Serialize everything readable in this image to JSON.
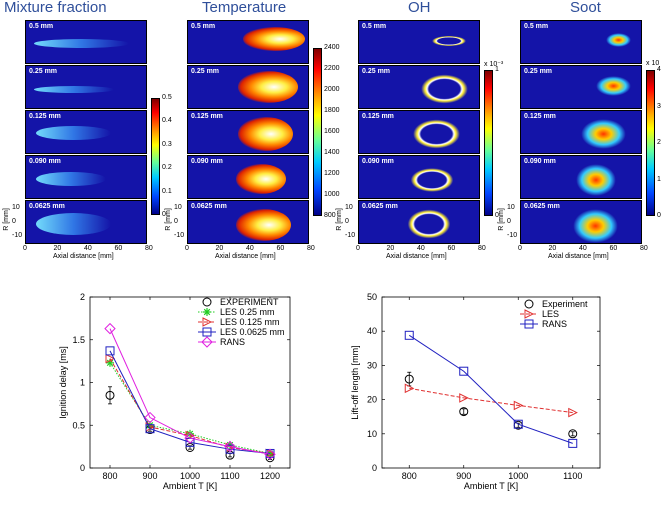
{
  "top_figure": {
    "columns": [
      {
        "title": "Mixture fraction",
        "panels": [
          "",
          "",
          "",
          "",
          ""
        ],
        "colorbar_ticks": [
          "0.5",
          "0.4",
          "0.3",
          "0.2",
          "0.1",
          "0"
        ],
        "colorbar_exp": ""
      },
      {
        "title": "Temperature",
        "panels": [
          "0.5 mm",
          "0.25 mm",
          "0.125 mm",
          "0.090 mm",
          "0.0625 mm"
        ],
        "colorbar_ticks": [
          "2400",
          "2200",
          "2000",
          "1800",
          "1600",
          "1400",
          "1200",
          "1000",
          "800"
        ],
        "colorbar_exp": ""
      },
      {
        "title": "OH",
        "panels": [
          "0.5 mm",
          "0.25 mm",
          "0.125 mm",
          "0.090 mm",
          "0.0625 mm"
        ],
        "colorbar_ticks": [
          "1",
          "0"
        ],
        "colorbar_exp": "x 10⁻³"
      },
      {
        "title": "Soot",
        "panels": [
          "0.5 mm",
          "0.25 mm",
          "0.125 mm",
          "0.090 mm",
          "0.0625 mm"
        ],
        "colorbar_ticks": [
          "4",
          "3",
          "2",
          "1",
          "0"
        ],
        "colorbar_exp": "x 10"
      }
    ],
    "mixture_panels": [
      "0.5 mm",
      "0.25 mm",
      "0.125 mm",
      "0.090 mm",
      "0.0625 mm"
    ],
    "y_ticks": [
      "10",
      "0",
      "-10"
    ],
    "x_ticks": [
      "0",
      "20",
      "40",
      "60",
      "80"
    ],
    "ylabel": "R [mm]",
    "xlabel": "Axial distance [mm]"
  },
  "chart_data": [
    {
      "type": "line",
      "xlabel": "Ambient T [K]",
      "ylabel": "Ignition delay [ms]",
      "x": [
        800,
        900,
        1000,
        1100,
        1200
      ],
      "xlim": [
        750,
        1250
      ],
      "ylim": [
        0,
        2
      ],
      "x_ticks": [
        800,
        900,
        1000,
        1100,
        1200
      ],
      "y_ticks": [
        0,
        0.5,
        1,
        1.5,
        2
      ],
      "legend_position": "top-right",
      "series": [
        {
          "name": "EXPERIMENT",
          "marker": "circle",
          "color": "#000000",
          "line": "none",
          "values": [
            0.85,
            0.45,
            0.24,
            0.15,
            0.12
          ],
          "errors": [
            0.1,
            0.02,
            0.02,
            0.02,
            0.02
          ]
        },
        {
          "name": "LES 0.25 mm",
          "marker": "star",
          "color": "#22cc22",
          "line": "dotted",
          "values": [
            1.23,
            0.5,
            0.4,
            0.27,
            0.17
          ]
        },
        {
          "name": "LES 0.125 mm",
          "marker": "triangle-right",
          "color": "#e03030",
          "line": "dashed",
          "values": [
            1.28,
            0.48,
            0.38,
            0.24,
            0.17
          ]
        },
        {
          "name": "LES 0.0625 mm",
          "marker": "square",
          "color": "#2020c0",
          "line": "solid",
          "values": [
            1.37,
            0.46,
            0.3,
            0.22,
            0.17
          ]
        },
        {
          "name": "RANS",
          "marker": "diamond",
          "color": "#e020e0",
          "line": "solid",
          "values": [
            1.63,
            0.59,
            0.35,
            0.25,
            0.16
          ]
        }
      ]
    },
    {
      "type": "line",
      "xlabel": "Ambient T [K]",
      "ylabel": "Lift-off length [mm]",
      "x": [
        800,
        900,
        1000,
        1100
      ],
      "xlim": [
        750,
        1150
      ],
      "ylim": [
        0,
        50
      ],
      "x_ticks": [
        800,
        900,
        1000,
        1100
      ],
      "y_ticks": [
        0,
        10,
        20,
        30,
        40,
        50
      ],
      "legend_position": "top-right",
      "series": [
        {
          "name": "Experiment",
          "marker": "circle",
          "color": "#000000",
          "line": "none",
          "values": [
            26,
            16.5,
            12.5,
            10
          ],
          "errors": [
            2,
            0.8,
            0.6,
            0.6
          ]
        },
        {
          "name": "LES",
          "marker": "triangle-right",
          "color": "#e03030",
          "line": "dashed",
          "values": [
            23.3,
            20.5,
            18.3,
            16.2
          ]
        },
        {
          "name": "RANS",
          "marker": "square",
          "color": "#2020c0",
          "line": "solid",
          "values": [
            38.8,
            28.3,
            12.8,
            7.2
          ]
        }
      ]
    }
  ]
}
